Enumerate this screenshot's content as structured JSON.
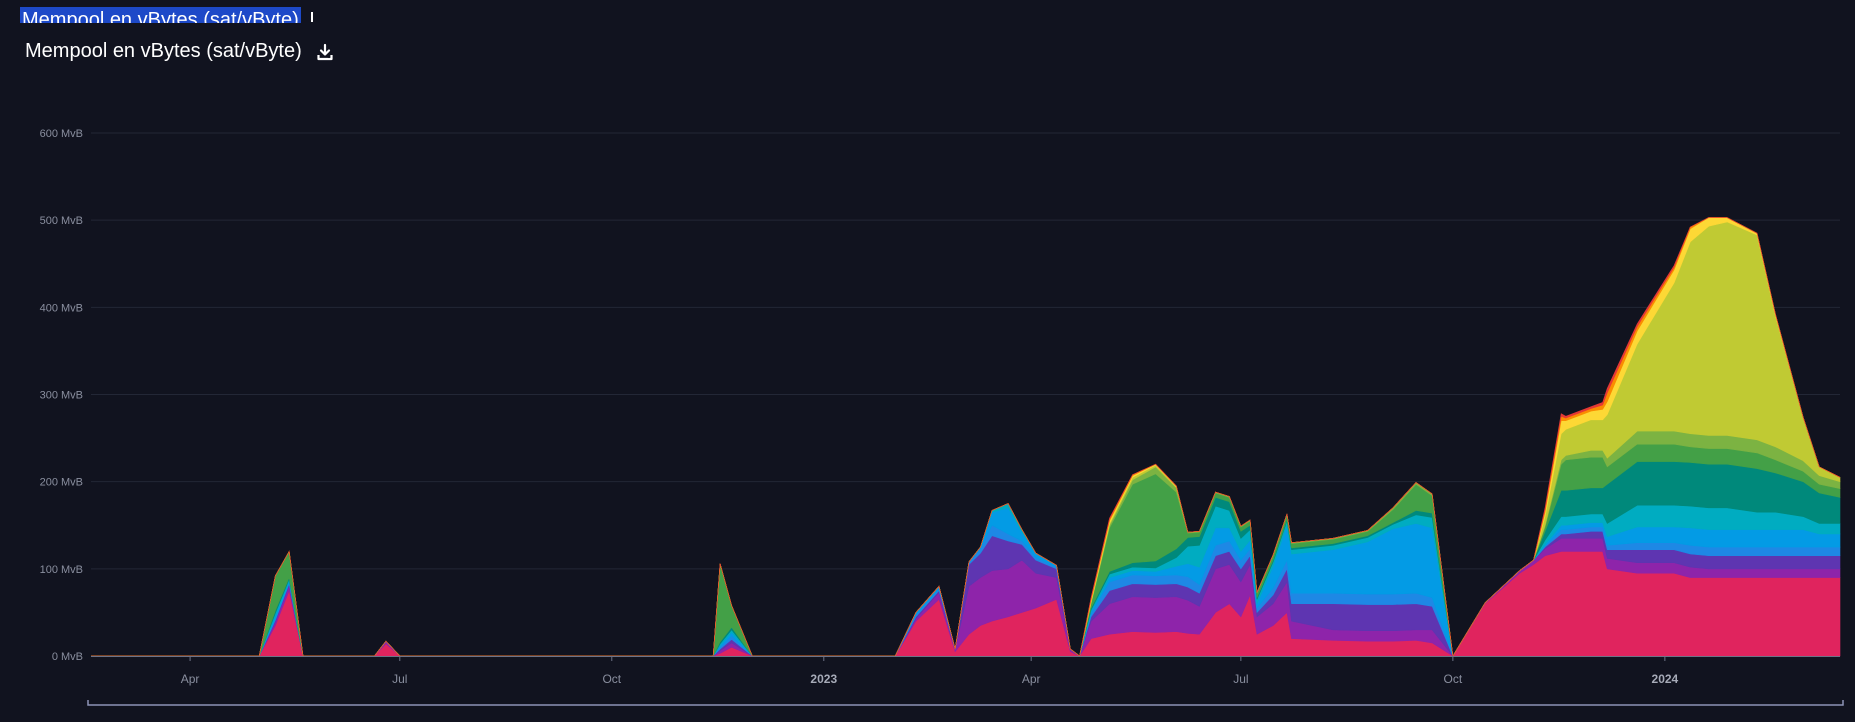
{
  "header": {
    "title": "Mempool en vBytes (sat/vByte)",
    "ghost_title": "Mempool en vBytes (sat/vByte)"
  },
  "colors": {
    "background": "#11131f",
    "grid": "#232736",
    "axis_text": "#8a8f9f",
    "zoom_bar": "#8d93b5"
  },
  "chart_data": {
    "type": "area",
    "stacked": true,
    "title": "Mempool en vBytes (sat/vByte)",
    "ylabel": "",
    "xlabel": "",
    "ylim": [
      0,
      600
    ],
    "y_ticks": [
      {
        "value": 0,
        "label": "0 MvB"
      },
      {
        "value": 100,
        "label": "100 MvB"
      },
      {
        "value": 200,
        "label": "200 MvB"
      },
      {
        "value": 300,
        "label": "300 MvB"
      },
      {
        "value": 400,
        "label": "400 MvB"
      },
      {
        "value": 500,
        "label": "500 MvB"
      },
      {
        "value": 600,
        "label": "600 MvB"
      }
    ],
    "xlim": [
      "2022-02-17",
      "2024-03-17"
    ],
    "x_ticks": [
      {
        "date": "2022-04-01",
        "label": "Apr",
        "bold": false
      },
      {
        "date": "2022-07-01",
        "label": "Jul",
        "bold": false
      },
      {
        "date": "2022-10-01",
        "label": "Oct",
        "bold": false
      },
      {
        "date": "2023-01-01",
        "label": "2023",
        "bold": true
      },
      {
        "date": "2023-04-01",
        "label": "Apr",
        "bold": false
      },
      {
        "date": "2023-07-01",
        "label": "Jul",
        "bold": false
      },
      {
        "date": "2023-10-01",
        "label": "Oct",
        "bold": false
      },
      {
        "date": "2024-01-01",
        "label": "2024",
        "bold": true
      }
    ],
    "grid": true,
    "legend": "none",
    "dates": [
      "2022-02-17",
      "2022-04-01",
      "2022-05-01",
      "2022-05-08",
      "2022-05-14",
      "2022-05-20",
      "2022-06-20",
      "2022-06-25",
      "2022-07-01",
      "2022-10-01",
      "2022-11-14",
      "2022-11-17",
      "2022-11-22",
      "2022-12-01",
      "2022-12-10",
      "2023-01-01",
      "2023-02-01",
      "2023-02-10",
      "2023-02-20",
      "2023-02-27",
      "2023-03-05",
      "2023-03-10",
      "2023-03-15",
      "2023-03-22",
      "2023-03-28",
      "2023-04-03",
      "2023-04-12",
      "2023-04-18",
      "2023-04-22",
      "2023-04-27",
      "2023-05-05",
      "2023-05-15",
      "2023-05-25",
      "2023-06-03",
      "2023-06-08",
      "2023-06-13",
      "2023-06-20",
      "2023-06-26",
      "2023-07-01",
      "2023-07-05",
      "2023-07-08",
      "2023-07-15",
      "2023-07-21",
      "2023-07-23",
      "2023-08-10",
      "2023-08-25",
      "2023-09-05",
      "2023-09-15",
      "2023-09-22",
      "2023-10-01",
      "2023-10-15",
      "2023-10-30",
      "2023-11-05",
      "2023-11-10",
      "2023-11-17",
      "2023-11-19",
      "2023-11-30",
      "2023-12-05",
      "2023-12-07",
      "2023-12-20",
      "2024-01-05",
      "2024-01-12",
      "2024-01-20",
      "2024-01-28",
      "2024-02-10",
      "2024-02-18",
      "2024-03-01",
      "2024-03-08",
      "2024-03-17"
    ],
    "series": [
      {
        "color": "#e0245e",
        "values": [
          0,
          0,
          0,
          35,
          75,
          0,
          0,
          14,
          0,
          0,
          0,
          3,
          10,
          0,
          0,
          0,
          0,
          40,
          65,
          5,
          25,
          35,
          40,
          45,
          50,
          55,
          65,
          5,
          0,
          20,
          25,
          28,
          27,
          28,
          26,
          25,
          50,
          60,
          45,
          70,
          25,
          35,
          50,
          20,
          18,
          17,
          17,
          18,
          15,
          0,
          60,
          95,
          105,
          115,
          120,
          120,
          120,
          120,
          100,
          95,
          95,
          90,
          90,
          90,
          90,
          90,
          90,
          90,
          90
        ]
      },
      {
        "color": "#8e24aa",
        "values": [
          0,
          0,
          0,
          4,
          6,
          0,
          0,
          2,
          0,
          0,
          0,
          3,
          5,
          0,
          0,
          0,
          0,
          3,
          8,
          2,
          55,
          55,
          58,
          55,
          60,
          40,
          25,
          2,
          0,
          20,
          35,
          40,
          40,
          40,
          38,
          32,
          50,
          45,
          40,
          35,
          20,
          25,
          35,
          20,
          12,
          12,
          12,
          12,
          15,
          0,
          1,
          3,
          5,
          8,
          15,
          15,
          15,
          15,
          12,
          12,
          12,
          12,
          10,
          10,
          10,
          10,
          10,
          10,
          10
        ]
      },
      {
        "color": "#5e35b1",
        "values": [
          0,
          0,
          0,
          2,
          2,
          0,
          0,
          1,
          0,
          0,
          0,
          2,
          4,
          0,
          0,
          0,
          0,
          2,
          2,
          1,
          25,
          28,
          40,
          32,
          18,
          15,
          10,
          1,
          0,
          5,
          15,
          15,
          15,
          15,
          15,
          15,
          15,
          15,
          15,
          10,
          5,
          10,
          15,
          20,
          30,
          30,
          30,
          30,
          27,
          0,
          0,
          0,
          0,
          2,
          5,
          5,
          8,
          8,
          10,
          15,
          15,
          15,
          15,
          15,
          15,
          15,
          15,
          15,
          15
        ]
      },
      {
        "color": "#1e88e5",
        "values": [
          0,
          0,
          0,
          2,
          1,
          0,
          0,
          0,
          0,
          0,
          0,
          2,
          4,
          0,
          0,
          0,
          0,
          2,
          2,
          0,
          3,
          5,
          12,
          8,
          4,
          3,
          2,
          0,
          0,
          3,
          10,
          10,
          10,
          10,
          12,
          10,
          12,
          12,
          10,
          8,
          5,
          8,
          10,
          12,
          12,
          12,
          12,
          12,
          10,
          0,
          0,
          0,
          0,
          1,
          5,
          5,
          5,
          5,
          5,
          8,
          8,
          10,
          10,
          10,
          10,
          10,
          10,
          10,
          10
        ]
      },
      {
        "color": "#039be5",
        "values": [
          0,
          0,
          0,
          3,
          2,
          0,
          0,
          0,
          0,
          0,
          0,
          2,
          4,
          0,
          0,
          0,
          0,
          3,
          3,
          0,
          0,
          2,
          15,
          30,
          10,
          5,
          2,
          0,
          0,
          3,
          5,
          5,
          5,
          10,
          15,
          20,
          20,
          15,
          10,
          10,
          5,
          25,
          40,
          45,
          50,
          60,
          75,
          80,
          80,
          0,
          0,
          0,
          0,
          2,
          5,
          5,
          5,
          5,
          10,
          18,
          18,
          20,
          20,
          20,
          20,
          20,
          20,
          15,
          15
        ]
      },
      {
        "color": "#00acc1",
        "values": [
          0,
          0,
          0,
          3,
          2,
          0,
          0,
          0,
          0,
          0,
          0,
          2,
          3,
          0,
          0,
          0,
          0,
          0,
          0,
          0,
          0,
          0,
          2,
          5,
          3,
          0,
          0,
          0,
          0,
          2,
          4,
          4,
          4,
          10,
          20,
          25,
          25,
          20,
          15,
          12,
          5,
          5,
          5,
          5,
          5,
          5,
          5,
          10,
          12,
          0,
          0,
          0,
          0,
          5,
          10,
          10,
          10,
          10,
          15,
          25,
          25,
          25,
          25,
          25,
          20,
          20,
          15,
          12,
          12
        ]
      },
      {
        "color": "#00897b",
        "values": [
          0,
          0,
          0,
          3,
          2,
          0,
          0,
          0,
          0,
          0,
          0,
          2,
          3,
          0,
          0,
          0,
          0,
          0,
          0,
          0,
          0,
          0,
          0,
          0,
          0,
          0,
          0,
          0,
          0,
          2,
          3,
          5,
          8,
          10,
          10,
          10,
          10,
          10,
          8,
          5,
          2,
          2,
          2,
          2,
          2,
          2,
          2,
          5,
          5,
          0,
          0,
          0,
          0,
          10,
          30,
          30,
          30,
          30,
          45,
          50,
          50,
          50,
          50,
          50,
          50,
          45,
          40,
          35,
          30
        ]
      },
      {
        "color": "#43a047",
        "values": [
          0,
          0,
          0,
          40,
          30,
          0,
          0,
          0,
          0,
          0,
          0,
          90,
          25,
          0,
          0,
          0,
          0,
          0,
          0,
          0,
          0,
          0,
          0,
          0,
          0,
          0,
          0,
          0,
          0,
          5,
          50,
          90,
          100,
          65,
          5,
          5,
          5,
          5,
          5,
          5,
          5,
          5,
          5,
          5,
          5,
          5,
          15,
          30,
          20,
          0,
          0,
          0,
          0,
          5,
          30,
          35,
          35,
          35,
          20,
          20,
          20,
          18,
          18,
          18,
          18,
          15,
          12,
          10,
          10
        ]
      },
      {
        "color": "#7cb342",
        "values": [
          0,
          0,
          0,
          0,
          0,
          0,
          0,
          0,
          0,
          0,
          0,
          0,
          0,
          0,
          0,
          0,
          0,
          0,
          0,
          0,
          0,
          0,
          0,
          0,
          0,
          0,
          0,
          0,
          0,
          1,
          3,
          5,
          8,
          5,
          1,
          1,
          1,
          1,
          1,
          1,
          1,
          1,
          1,
          1,
          1,
          1,
          2,
          2,
          2,
          0,
          0,
          0,
          0,
          2,
          5,
          5,
          8,
          8,
          10,
          15,
          15,
          15,
          15,
          15,
          15,
          15,
          12,
          10,
          8
        ]
      },
      {
        "color": "#c0ca33",
        "values": [
          0,
          0,
          0,
          0,
          0,
          0,
          0,
          0,
          0,
          0,
          0,
          0,
          0,
          0,
          0,
          0,
          0,
          0,
          0,
          0,
          0,
          0,
          0,
          0,
          0,
          0,
          0,
          0,
          0,
          1,
          2,
          3,
          2,
          1,
          0,
          0,
          0,
          0,
          0,
          0,
          0,
          0,
          0,
          0,
          0,
          0,
          0,
          0,
          0,
          0,
          0,
          0,
          0,
          10,
          30,
          30,
          35,
          35,
          50,
          100,
          170,
          220,
          240,
          245,
          235,
          150,
          50,
          10,
          5
        ]
      },
      {
        "color": "#fdd835",
        "values": [
          0,
          0,
          0,
          0,
          0,
          0,
          0,
          0,
          0,
          0,
          0,
          0,
          0,
          0,
          0,
          0,
          0,
          0,
          0,
          0,
          0,
          0,
          0,
          0,
          0,
          0,
          0,
          0,
          0,
          2,
          3,
          2,
          1,
          1,
          0,
          0,
          0,
          0,
          0,
          0,
          0,
          0,
          0,
          0,
          0,
          0,
          0,
          0,
          0,
          0,
          0,
          0,
          0,
          5,
          15,
          10,
          10,
          12,
          15,
          15,
          15,
          15,
          10,
          5,
          2,
          2,
          0,
          0,
          0
        ]
      },
      {
        "color": "#fb8c00",
        "values": [
          0,
          0,
          0,
          0,
          0,
          0,
          0,
          0,
          0,
          0,
          0,
          0,
          0,
          0,
          0,
          0,
          0,
          0,
          0,
          0,
          0,
          0,
          0,
          0,
          0,
          0,
          0,
          0,
          0,
          2,
          2,
          1,
          0,
          0,
          0,
          0,
          0,
          0,
          0,
          0,
          0,
          0,
          0,
          0,
          0,
          0,
          0,
          0,
          0,
          0,
          0,
          0,
          0,
          3,
          5,
          3,
          3,
          5,
          10,
          5,
          3,
          2,
          0,
          0,
          0,
          0,
          0,
          0,
          0
        ]
      },
      {
        "color": "#e53935",
        "values": [
          0,
          0,
          0,
          0,
          0,
          0,
          0,
          0,
          0,
          0,
          0,
          0,
          0,
          0,
          0,
          0,
          0,
          0,
          0,
          0,
          0,
          0,
          0,
          0,
          0,
          0,
          0,
          0,
          0,
          1,
          1,
          0,
          0,
          0,
          0,
          0,
          0,
          0,
          0,
          0,
          0,
          0,
          0,
          0,
          0,
          0,
          0,
          0,
          0,
          0,
          0,
          0,
          0,
          2,
          3,
          2,
          2,
          3,
          5,
          3,
          2,
          0,
          0,
          0,
          0,
          0,
          0,
          0,
          0
        ]
      }
    ]
  }
}
